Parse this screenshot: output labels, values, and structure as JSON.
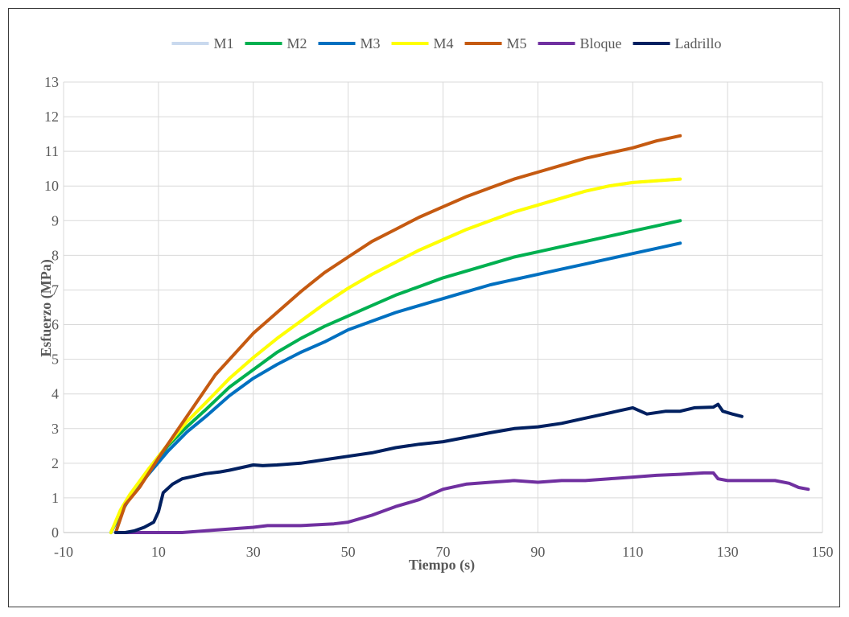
{
  "chart_data": {
    "type": "line",
    "title": "",
    "xlabel": "Tiempo (s)",
    "ylabel": "Esfuerzo (MPa)",
    "xlim": [
      -10,
      150
    ],
    "ylim": [
      0,
      13
    ],
    "xticks": [
      -10,
      10,
      30,
      50,
      70,
      90,
      110,
      130,
      150
    ],
    "yticks": [
      0,
      1,
      2,
      3,
      4,
      5,
      6,
      7,
      8,
      9,
      10,
      11,
      12,
      13
    ],
    "grid": "both",
    "legend_position": "top",
    "series": [
      {
        "name": "M1",
        "color": "#c9d9ee",
        "points": [
          [
            0,
            0
          ],
          [
            2,
            0.65
          ],
          [
            4,
            1.1
          ],
          [
            8,
            1.85
          ],
          [
            12,
            2.55
          ],
          [
            16,
            3.2
          ],
          [
            20,
            3.75
          ],
          [
            25,
            4.45
          ],
          [
            30,
            5.05
          ],
          [
            35,
            5.6
          ],
          [
            40,
            6.1
          ],
          [
            45,
            6.6
          ],
          [
            50,
            7.05
          ],
          [
            55,
            7.45
          ],
          [
            60,
            7.8
          ],
          [
            65,
            8.15
          ],
          [
            70,
            8.45
          ],
          [
            75,
            8.75
          ],
          [
            80,
            9.0
          ],
          [
            85,
            9.25
          ],
          [
            90,
            9.45
          ],
          [
            95,
            9.65
          ],
          [
            100,
            9.85
          ],
          [
            105,
            10.0
          ],
          [
            110,
            10.1
          ],
          [
            115,
            10.15
          ],
          [
            120,
            10.2
          ]
        ]
      },
      {
        "name": "M2",
        "color": "#00b050",
        "points": [
          [
            0,
            0
          ],
          [
            2,
            0.6
          ],
          [
            4,
            1.05
          ],
          [
            8,
            1.8
          ],
          [
            12,
            2.5
          ],
          [
            16,
            3.05
          ],
          [
            20,
            3.55
          ],
          [
            25,
            4.2
          ],
          [
            30,
            4.7
          ],
          [
            35,
            5.2
          ],
          [
            40,
            5.6
          ],
          [
            45,
            5.95
          ],
          [
            50,
            6.25
          ],
          [
            55,
            6.55
          ],
          [
            60,
            6.85
          ],
          [
            65,
            7.1
          ],
          [
            70,
            7.35
          ],
          [
            75,
            7.55
          ],
          [
            80,
            7.75
          ],
          [
            85,
            7.95
          ],
          [
            90,
            8.1
          ],
          [
            95,
            8.25
          ],
          [
            100,
            8.4
          ],
          [
            105,
            8.55
          ],
          [
            110,
            8.7
          ],
          [
            115,
            8.85
          ],
          [
            120,
            9.0
          ]
        ]
      },
      {
        "name": "M3",
        "color": "#0070c0",
        "points": [
          [
            0,
            0
          ],
          [
            2,
            0.55
          ],
          [
            4,
            1.0
          ],
          [
            8,
            1.7
          ],
          [
            12,
            2.35
          ],
          [
            16,
            2.9
          ],
          [
            20,
            3.35
          ],
          [
            25,
            3.95
          ],
          [
            30,
            4.45
          ],
          [
            35,
            4.85
          ],
          [
            40,
            5.2
          ],
          [
            45,
            5.5
          ],
          [
            50,
            5.85
          ],
          [
            55,
            6.1
          ],
          [
            60,
            6.35
          ],
          [
            65,
            6.55
          ],
          [
            70,
            6.75
          ],
          [
            75,
            6.95
          ],
          [
            80,
            7.15
          ],
          [
            85,
            7.3
          ],
          [
            90,
            7.45
          ],
          [
            95,
            7.6
          ],
          [
            100,
            7.75
          ],
          [
            105,
            7.9
          ],
          [
            110,
            8.05
          ],
          [
            115,
            8.2
          ],
          [
            120,
            8.35
          ]
        ]
      },
      {
        "name": "M4",
        "color": "#ffff00",
        "points": [
          [
            0,
            0
          ],
          [
            2,
            0.65
          ],
          [
            4,
            1.1
          ],
          [
            8,
            1.85
          ],
          [
            12,
            2.55
          ],
          [
            16,
            3.2
          ],
          [
            20,
            3.75
          ],
          [
            25,
            4.45
          ],
          [
            30,
            5.05
          ],
          [
            35,
            5.6
          ],
          [
            40,
            6.1
          ],
          [
            45,
            6.6
          ],
          [
            50,
            7.05
          ],
          [
            55,
            7.45
          ],
          [
            60,
            7.8
          ],
          [
            65,
            8.15
          ],
          [
            70,
            8.45
          ],
          [
            75,
            8.75
          ],
          [
            80,
            9.0
          ],
          [
            85,
            9.25
          ],
          [
            90,
            9.45
          ],
          [
            95,
            9.65
          ],
          [
            100,
            9.85
          ],
          [
            105,
            10.0
          ],
          [
            110,
            10.1
          ],
          [
            115,
            10.15
          ],
          [
            120,
            10.2
          ]
        ]
      },
      {
        "name": "M5",
        "color": "#c55a11",
        "points": [
          [
            1,
            0
          ],
          [
            3,
            0.8
          ],
          [
            6,
            1.3
          ],
          [
            10,
            2.15
          ],
          [
            14,
            2.95
          ],
          [
            18,
            3.75
          ],
          [
            22,
            4.55
          ],
          [
            26,
            5.15
          ],
          [
            30,
            5.75
          ],
          [
            35,
            6.35
          ],
          [
            40,
            6.95
          ],
          [
            45,
            7.5
          ],
          [
            50,
            7.95
          ],
          [
            55,
            8.4
          ],
          [
            60,
            8.75
          ],
          [
            65,
            9.1
          ],
          [
            70,
            9.4
          ],
          [
            75,
            9.7
          ],
          [
            80,
            9.95
          ],
          [
            85,
            10.2
          ],
          [
            90,
            10.4
          ],
          [
            95,
            10.6
          ],
          [
            100,
            10.8
          ],
          [
            105,
            10.95
          ],
          [
            110,
            11.1
          ],
          [
            115,
            11.3
          ],
          [
            120,
            11.45
          ]
        ]
      },
      {
        "name": "Bloque",
        "color": "#7030a0",
        "points": [
          [
            1,
            0
          ],
          [
            15,
            0
          ],
          [
            20,
            0.05
          ],
          [
            30,
            0.15
          ],
          [
            33,
            0.2
          ],
          [
            40,
            0.2
          ],
          [
            47,
            0.25
          ],
          [
            50,
            0.3
          ],
          [
            55,
            0.5
          ],
          [
            60,
            0.75
          ],
          [
            65,
            0.95
          ],
          [
            70,
            1.25
          ],
          [
            75,
            1.4
          ],
          [
            80,
            1.45
          ],
          [
            85,
            1.5
          ],
          [
            90,
            1.45
          ],
          [
            95,
            1.5
          ],
          [
            100,
            1.5
          ],
          [
            105,
            1.55
          ],
          [
            110,
            1.6
          ],
          [
            115,
            1.65
          ],
          [
            120,
            1.68
          ],
          [
            125,
            1.72
          ],
          [
            127,
            1.72
          ],
          [
            128,
            1.55
          ],
          [
            130,
            1.5
          ],
          [
            135,
            1.5
          ],
          [
            140,
            1.5
          ],
          [
            143,
            1.42
          ],
          [
            145,
            1.3
          ],
          [
            147,
            1.25
          ]
        ]
      },
      {
        "name": "Ladrillo",
        "color": "#002060",
        "points": [
          [
            1,
            0
          ],
          [
            3,
            0
          ],
          [
            5,
            0.05
          ],
          [
            7,
            0.15
          ],
          [
            9,
            0.3
          ],
          [
            10,
            0.6
          ],
          [
            11,
            1.15
          ],
          [
            13,
            1.4
          ],
          [
            15,
            1.55
          ],
          [
            20,
            1.7
          ],
          [
            23,
            1.75
          ],
          [
            25,
            1.8
          ],
          [
            30,
            1.95
          ],
          [
            32,
            1.93
          ],
          [
            35,
            1.95
          ],
          [
            40,
            2.0
          ],
          [
            45,
            2.1
          ],
          [
            50,
            2.2
          ],
          [
            55,
            2.3
          ],
          [
            60,
            2.45
          ],
          [
            65,
            2.55
          ],
          [
            70,
            2.62
          ],
          [
            75,
            2.75
          ],
          [
            80,
            2.88
          ],
          [
            85,
            3.0
          ],
          [
            90,
            3.05
          ],
          [
            95,
            3.15
          ],
          [
            100,
            3.3
          ],
          [
            105,
            3.45
          ],
          [
            110,
            3.6
          ],
          [
            113,
            3.42
          ],
          [
            117,
            3.5
          ],
          [
            120,
            3.5
          ],
          [
            123,
            3.6
          ],
          [
            127,
            3.62
          ],
          [
            128,
            3.7
          ],
          [
            129,
            3.5
          ],
          [
            131,
            3.42
          ],
          [
            133,
            3.35
          ]
        ]
      }
    ]
  }
}
